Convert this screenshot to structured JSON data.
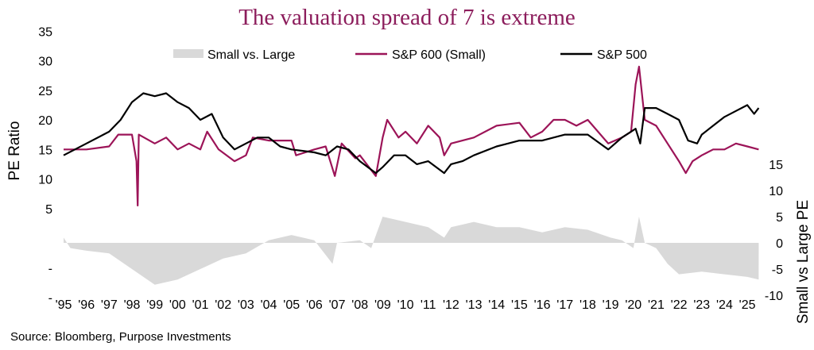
{
  "chart_data": {
    "type": "line",
    "title": "The valuation spread of 7 is extreme",
    "source": "Source: Bloomberg, Purpose Investments",
    "ylabel": "PE Ratio",
    "y2label": "Small vs Large PE",
    "left_ticks": [
      "35",
      "30",
      "25",
      "20",
      "15",
      "10",
      "5",
      "-",
      "-"
    ],
    "left_tick_values": [
      35,
      30,
      25,
      20,
      15,
      10,
      5,
      -5,
      -10
    ],
    "right_ticks": [
      "15",
      "10",
      "5",
      "0",
      "-5",
      "-10"
    ],
    "right_tick_values": [
      15,
      10,
      5,
      0,
      -5,
      -10
    ],
    "x_ticks": [
      "'95",
      "'96",
      "'97",
      "'98",
      "'99",
      "'00",
      "'01",
      "'02",
      "'03",
      "'04",
      "'05",
      "'06",
      "'07",
      "'08",
      "'09",
      "'10",
      "'11",
      "'12",
      "'13",
      "'14",
      "'15",
      "'16",
      "'17",
      "'18",
      "'19",
      "'20",
      "'21",
      "'22",
      "'23",
      "'24",
      "'25"
    ],
    "legend_position": "top-center",
    "grid": false,
    "series": [
      {
        "name": "Small vs. Large",
        "type": "area",
        "axis": "right",
        "color": "#d9d9d9",
        "x": [
          1995,
          1995.3,
          1996,
          1997,
          1998,
          1999,
          2000,
          2001,
          2002,
          2003,
          2004,
          2005,
          2006,
          2006.8,
          2007,
          2008,
          2008.5,
          2009,
          2010,
          2011,
          2011.7,
          2012,
          2013,
          2014,
          2015,
          2016,
          2017,
          2018,
          2019,
          2019.5,
          2020,
          2020.25,
          2020.5,
          2021,
          2021.5,
          2022,
          2023,
          2024,
          2025,
          2025.5
        ],
        "y": [
          1,
          -1,
          -1.5,
          -2,
          -5,
          -8,
          -7,
          -5,
          -3,
          -2,
          0.5,
          1.5,
          0.5,
          -4,
          0,
          0.5,
          -1,
          5,
          4,
          3,
          1,
          3,
          4,
          3,
          3,
          2,
          3,
          2.5,
          1,
          0.5,
          -1,
          5,
          0,
          -1,
          -4,
          -6,
          -5.5,
          -6,
          -6.5,
          -7
        ]
      },
      {
        "name": "S&P 600 (Small)",
        "type": "line",
        "axis": "left",
        "color": "#9c1458",
        "x": [
          1995,
          1996,
          1997,
          1997.4,
          1998,
          1998.2,
          1998.25,
          1998.3,
          1999,
          1999.5,
          2000,
          2000.5,
          2001,
          2001.3,
          2001.8,
          2002.5,
          2003,
          2003.3,
          2004,
          2005,
          2005.2,
          2006,
          2006.5,
          2006.9,
          2007.2,
          2007.8,
          2008,
          2008.7,
          2009,
          2009.2,
          2009.7,
          2010,
          2010.5,
          2011,
          2011.5,
          2011.7,
          2012,
          2013,
          2014,
          2015,
          2015.5,
          2016,
          2016.5,
          2017,
          2017.5,
          2018,
          2018.9,
          2019.5,
          2019.9,
          2020.1,
          2020.25,
          2020.5,
          2021,
          2021.5,
          2022,
          2022.3,
          2022.6,
          2023,
          2023.5,
          2024,
          2024.5,
          2025,
          2025.5
        ],
        "y": [
          15,
          15,
          15.5,
          17.5,
          17.5,
          13,
          5.5,
          17.5,
          16,
          17,
          15,
          16,
          15,
          18,
          15,
          13,
          14,
          17,
          16.5,
          16.5,
          14,
          15,
          15.5,
          10.5,
          16,
          13.5,
          14,
          10.5,
          17,
          20,
          17,
          18,
          16,
          19,
          17,
          14,
          16,
          17,
          19,
          19.5,
          17,
          18,
          20,
          20,
          19,
          20,
          16,
          17,
          18,
          26,
          29,
          20,
          19,
          16,
          13,
          11,
          13,
          14,
          15,
          15,
          16,
          15.5,
          15
        ]
      },
      {
        "name": "S&P 500",
        "type": "line",
        "axis": "left",
        "color": "#000000",
        "x": [
          1995,
          1996,
          1997,
          1997.5,
          1998,
          1998.5,
          1999,
          1999.5,
          2000,
          2000.5,
          2001,
          2001.5,
          2002,
          2002.5,
          2003,
          2003.5,
          2004,
          2004.5,
          2005,
          2006,
          2006.5,
          2007,
          2007.5,
          2008,
          2008.7,
          2009,
          2009.5,
          2010,
          2010.5,
          2011,
          2011.7,
          2012,
          2012.5,
          2013,
          2014,
          2015,
          2016,
          2017,
          2018,
          2018.9,
          2019.5,
          2020.1,
          2020.3,
          2020.5,
          2021,
          2021.5,
          2022,
          2022.4,
          2022.8,
          2023,
          2023.5,
          2024,
          2024.5,
          2025,
          2025.3,
          2025.5
        ],
        "y": [
          14,
          16,
          18,
          20,
          23,
          24.5,
          24,
          24.5,
          23,
          22,
          20,
          21,
          17,
          15,
          16,
          17,
          17,
          15.5,
          15,
          14.5,
          14,
          15.5,
          15,
          13,
          11,
          12,
          14,
          14,
          12.5,
          13,
          11,
          12.5,
          13,
          14,
          15.5,
          16.5,
          16.5,
          17.5,
          17.5,
          15,
          17,
          18.5,
          16,
          22,
          22,
          21,
          20,
          16.5,
          16,
          17.5,
          19,
          20.5,
          21.5,
          22.5,
          21,
          22
        ]
      }
    ]
  }
}
